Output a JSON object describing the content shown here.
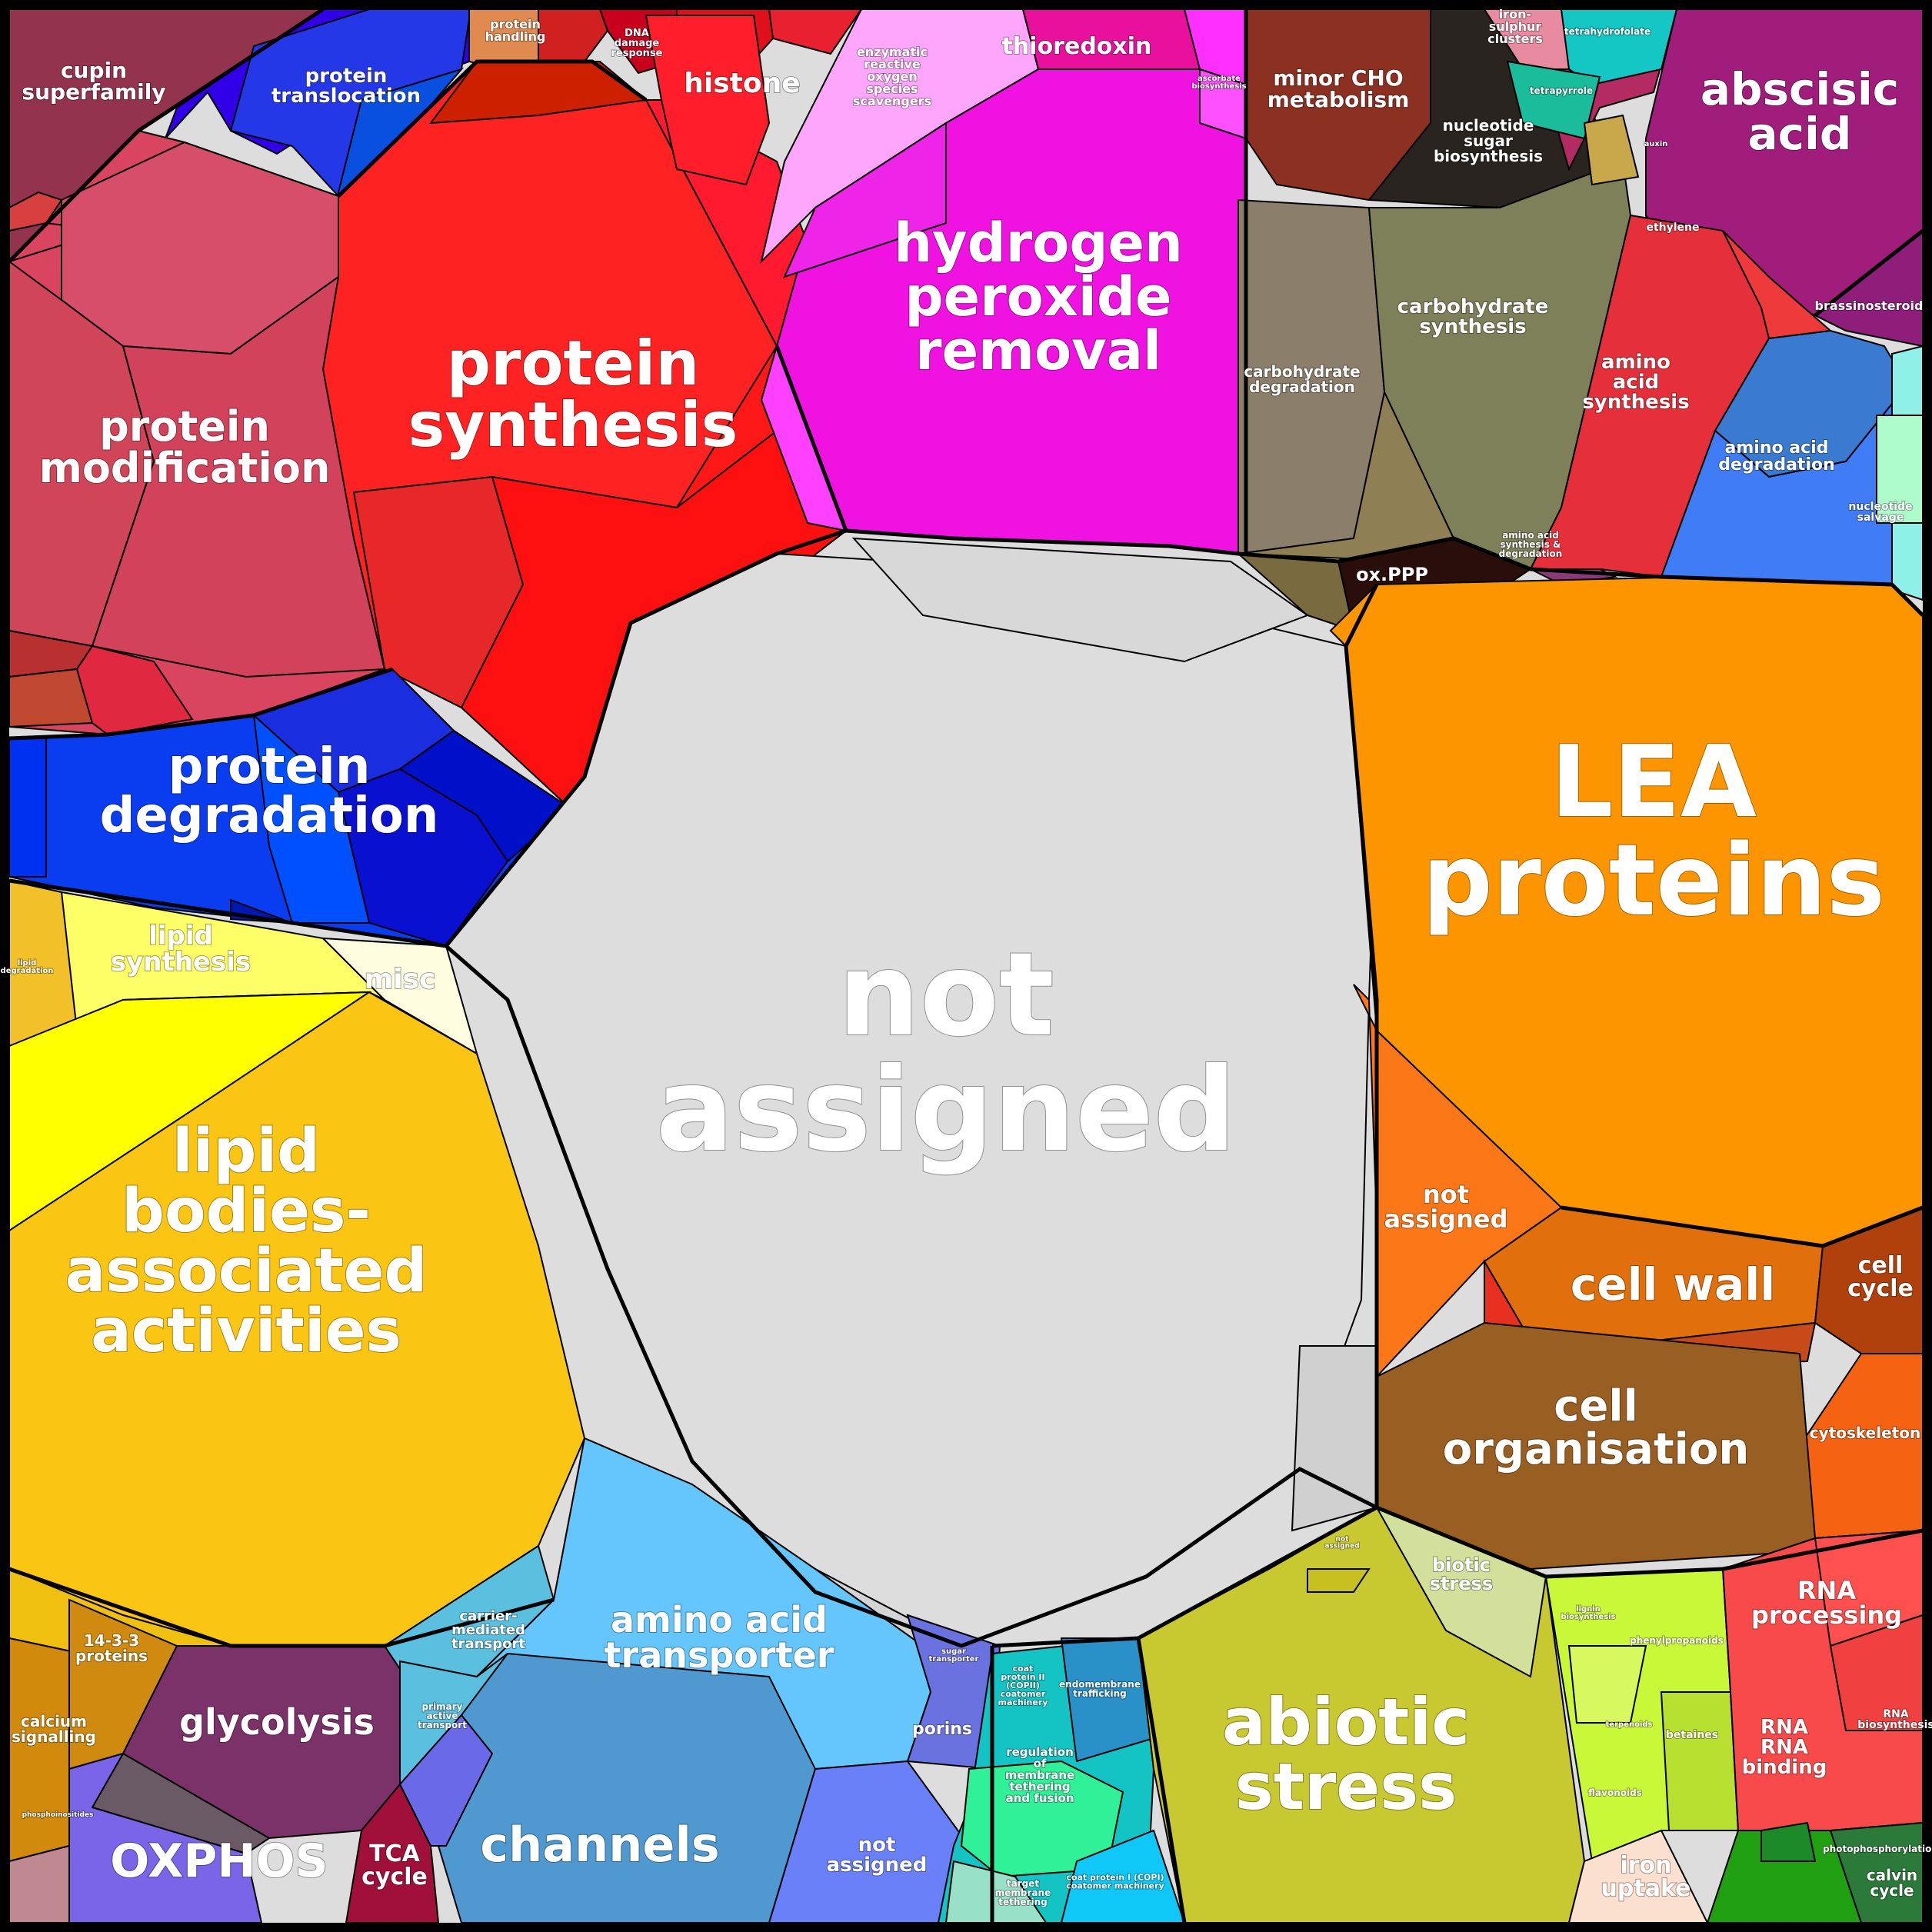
{
  "labels": {
    "not_assigned_center": [
      "not",
      "assigned"
    ],
    "lea_proteins": [
      "LEA",
      "proteins"
    ],
    "protein_synthesis": [
      "protein",
      "synthesis"
    ],
    "protein_modification": [
      "protein",
      "modification"
    ],
    "protein_degradation": [
      "protein",
      "degradation"
    ],
    "hydrogen_peroxide_removal": [
      "hydrogen",
      "peroxide",
      "removal"
    ],
    "lipid_bodies": [
      "lipid",
      "bodies-",
      "associated",
      "activities"
    ],
    "abiotic_stress": [
      "abiotic",
      "stress"
    ],
    "channels": [
      "channels"
    ],
    "amino_acid_transporter": [
      "amino acid",
      "transporter"
    ],
    "abscisic_acid": [
      "abscisic",
      "acid"
    ],
    "cell_wall": [
      "cell wall"
    ],
    "cell_organisation": [
      "cell",
      "organisation"
    ],
    "oxphos": [
      "OXPHOS"
    ],
    "glycolysis": [
      "glycolysis"
    ],
    "cupin_superfamily": [
      "cupin",
      "superfamily"
    ],
    "protein_translocation": [
      "protein",
      "translocation"
    ],
    "histone": [
      "histone"
    ],
    "thioredoxin": [
      "thioredoxin"
    ],
    "minor_cho_metabolism": [
      "minor CHO",
      "metabolism"
    ],
    "nucleotide_sugar_biosynthesis": [
      "nucleotide",
      "sugar",
      "biosynthesis"
    ],
    "carbohydrate_synthesis": [
      "carbohydrate",
      "synthesis"
    ],
    "carbohydrate_degradation": [
      "carbohydrate",
      "degradation"
    ],
    "ox_ppp": [
      "ox.PPP"
    ],
    "amino_acid_synthesis": [
      "amino",
      "acid",
      "synthesis"
    ],
    "amino_acid_degradation": [
      "amino acid",
      "degradation"
    ],
    "lipid_synthesis": [
      "lipid",
      "synthesis"
    ],
    "misc": [
      "misc"
    ],
    "not_assigned_orange": [
      "not",
      "assigned"
    ],
    "cell_cycle": [
      "cell",
      "cycle"
    ],
    "cytoskeleton": [
      "cytoskeleton"
    ],
    "biotic_stress": [
      "biotic",
      "stress"
    ],
    "rna_processing": [
      "RNA",
      "processing"
    ],
    "rna_binding": [
      "RNA",
      "RNA",
      "binding"
    ],
    "iron_uptake": [
      "iron",
      "uptake"
    ],
    "tca_cycle": [
      "TCA",
      "cycle"
    ],
    "not_assigned_blue": [
      "not",
      "assigned"
    ],
    "porins": [
      "porins"
    ],
    "carrier_mediated_transport": [
      "carrier-",
      "mediated",
      "transport"
    ],
    "calcium_signalling": [
      "calcium",
      "signalling"
    ],
    "proteins_14_3_3": [
      "14-3-3",
      "proteins"
    ],
    "enzymatic_ros": [
      "enzymatic",
      "reactive",
      "oxygen",
      "species",
      "scavengers"
    ],
    "protein_handling": [
      "protein",
      "handling"
    ],
    "dna_damage_response": [
      "DNA",
      "damage",
      "response"
    ],
    "ethylene": [
      "ethylene"
    ],
    "brassinosteroid": [
      "brassinosteroid"
    ],
    "iron_sulphur_clusters": [
      "iron-",
      "sulphur",
      "clusters"
    ],
    "tetrahydrofolate": [
      "tetrahydrofolate"
    ],
    "tetrapyrrole": [
      "tetrapyrrole"
    ],
    "auxin": [
      "auxin"
    ],
    "amino_acid_synth_deg": [
      "amino acid",
      "synthesis &",
      "degradation"
    ],
    "nucleotide_salvage": [
      "nucleotide",
      "salvage"
    ],
    "phenylpropanoids": [
      "phenylpropanoids"
    ],
    "betaines": [
      "betaines"
    ],
    "flavonoids": [
      "flavonoids"
    ],
    "terpenoids": [
      "terpenoids"
    ],
    "lignin_biosynthesis": [
      "lignin",
      "biosynthesis"
    ],
    "photophosphorylation": [
      "photophosphorylation"
    ],
    "calvin_cycle": [
      "calvin",
      "cycle"
    ],
    "primary_active_transport": [
      "primary",
      "active",
      "transport"
    ],
    "sugar_transporter": [
      "sugar",
      "transporter"
    ],
    "coat_protein_2": [
      "coat",
      "protein II",
      "(COPII)",
      "coatomer",
      "machinery"
    ],
    "endomembrane_trafficking": [
      "endomembrane",
      "trafficking"
    ],
    "regulation_membrane_tethering": [
      "regulation",
      "of",
      "membrane",
      "tethering",
      "and fusion"
    ],
    "coat_protein_1": [
      "coat protein I (COPI)",
      "coatomer machinery"
    ],
    "target_membrane_tethering": [
      "target",
      "membrane",
      "tethering"
    ],
    "ascorbate_biosynthesis": [
      "ascorbate",
      "biosynthesis"
    ],
    "rna_biosynthesis": [
      "RNA",
      "biosynthesis"
    ],
    "lipid_degradation": [
      "lipid",
      "degradation"
    ],
    "phosphoinositides": [
      "phosphoinositides"
    ],
    "not_assigned_small": [
      "not",
      "assigned"
    ]
  },
  "colors": {
    "background": "#dddddd",
    "lea": "#fd9500",
    "protein_red": "#ff2222",
    "protein_mod": "#d9455f",
    "protein_deg": "#0a3cf0",
    "h2o2": "#f010e0",
    "lipid_yellow": "#fbc514",
    "abiotic": "#c8c831",
    "channels": "#5099d0",
    "transporter": "#64c6fc",
    "abscisic": "#a01d7c",
    "cell_wall": "#e06f0c",
    "cell_org": "#995e22",
    "oxphos": "#7a64e8",
    "glycolysis": "#7a3268",
    "cupin": "#93334e",
    "carbohydrate": "#8e7f55",
    "amino_acid_red": "#ee303a",
    "rna": "#f84a4a",
    "iron_uptake": "#fce0cf",
    "aux_green": "#c8f838"
  }
}
